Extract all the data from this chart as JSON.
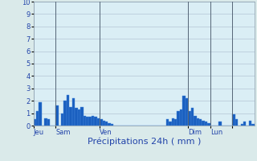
{
  "title": "",
  "xlabel": "Précipitations 24h ( mm )",
  "ylabel": "",
  "ylim": [
    0,
    10
  ],
  "yticks": [
    0,
    1,
    2,
    3,
    4,
    5,
    6,
    7,
    8,
    9,
    10
  ],
  "background_color": "#daeaea",
  "plot_bg_color": "#daeef5",
  "bar_color": "#1a5fbf",
  "bar_edge_color": "#4488dd",
  "grid_color": "#aabbcc",
  "day_line_color": "#556677",
  "values": [
    0.5,
    1.2,
    1.9,
    0.0,
    0.6,
    0.5,
    0.0,
    0.0,
    1.6,
    0.0,
    1.0,
    2.0,
    2.5,
    1.5,
    2.2,
    1.4,
    1.3,
    1.5,
    0.8,
    0.7,
    0.7,
    0.8,
    0.7,
    0.6,
    0.5,
    0.4,
    0.3,
    0.2,
    0.1,
    0.0,
    0.0,
    0.0,
    0.0,
    0.0,
    0.0,
    0.0,
    0.0,
    0.0,
    0.0,
    0.0,
    0.0,
    0.0,
    0.0,
    0.0,
    0.0,
    0.0,
    0.0,
    0.0,
    0.5,
    0.3,
    0.6,
    0.5,
    1.2,
    1.3,
    2.4,
    2.2,
    1.2,
    1.4,
    0.8,
    0.6,
    0.5,
    0.4,
    0.3,
    0.2,
    0.0,
    0.0,
    0.0,
    0.3,
    0.0,
    0.0,
    0.0,
    0.0,
    0.9,
    0.5,
    0.0,
    0.1,
    0.3,
    0.0,
    0.4,
    0.1
  ],
  "day_lines": [
    8,
    24,
    56,
    64,
    72
  ],
  "day_tick_positions": [
    0,
    8,
    24,
    56,
    64,
    72
  ],
  "day_tick_labels": [
    "Jeu",
    "Sam",
    "Ven",
    "Dim",
    "Lun",
    ""
  ],
  "n_bars": 80,
  "xlabel_fontsize": 8,
  "xlabel_color": "#2244aa",
  "ytick_fontsize": 6,
  "xtick_fontsize": 6,
  "tick_color": "#2244aa"
}
